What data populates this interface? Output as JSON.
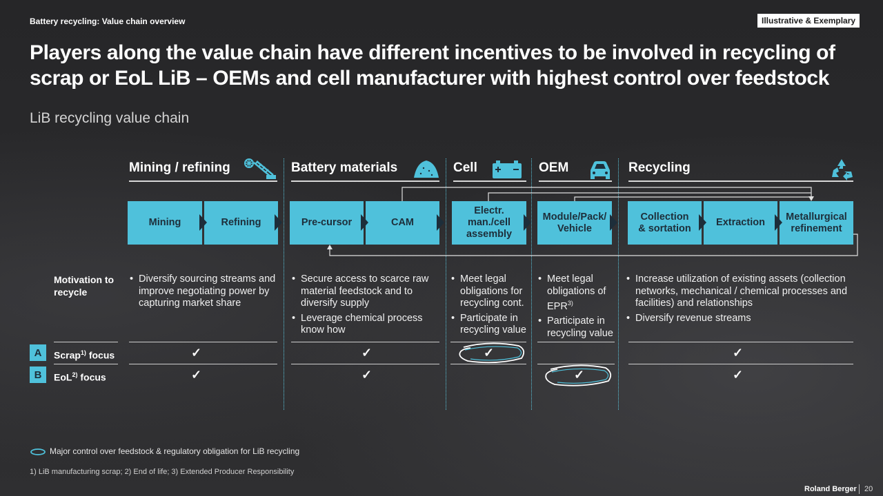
{
  "header": {
    "topic": "Battery recycling: Value chain overview",
    "badge": "Illustrative & Exemplary",
    "title": "Players along the value chain have different incentives to be involved in recycling of scrap or EoL LiB – OEMs and cell manufacturer with highest control over feedstock",
    "subtitle": "LiB recycling value chain"
  },
  "sections": [
    {
      "label": "Mining / refining",
      "icon": "excavator-icon"
    },
    {
      "label": "Battery materials",
      "icon": "material-pile-icon"
    },
    {
      "label": "Cell",
      "icon": "battery-icon"
    },
    {
      "label": "OEM",
      "icon": "car-icon"
    },
    {
      "label": "Recycling",
      "icon": "recycle-icon"
    }
  ],
  "steps": {
    "mining": "Mining",
    "refining": "Refining",
    "precursor": "Pre-cursor",
    "cam": "CAM",
    "cell_line1": "Electr.",
    "cell_line2": "man./cell",
    "cell_line3": "assembly",
    "oem_line1": "Module/Pack/",
    "oem_line2": "Vehicle",
    "collection_line1": "Collection",
    "collection_line2": "& sortation",
    "extraction": "Extraction",
    "metallurgical_line1": "Metallurgical",
    "metallurgical_line2": "refinement"
  },
  "rows": {
    "motivation_line1": "Motivation to",
    "motivation_line2": "recycle",
    "scrap_letter": "A",
    "scrap_label": "Scrap",
    "scrap_sup": "1)",
    "scrap_suffix": " focus",
    "eol_letter": "B",
    "eol_label": "EoL",
    "eol_sup": "2)",
    "eol_suffix": " focus"
  },
  "motivation": {
    "mining": [
      "Diversify sourcing streams and improve negotiating power by capturing market share"
    ],
    "materials": [
      "Secure access to scarce raw material feedstock and to diversify supply",
      "Leverage chemical process know how"
    ],
    "cell": [
      "Meet legal obligations for recycling cont.",
      "Participate in recycling value"
    ],
    "oem_b1": "Meet legal obligations of EPR",
    "oem_b1_sup": "3)",
    "oem_b2": "Participate in recycling value",
    "recycling": [
      "Increase utilization of existing assets (collection networks, mechanical / chemical processes and facilities) and relationships",
      "Diversify revenue streams"
    ]
  },
  "focus": {
    "scrap": {
      "mining": "✓",
      "materials": "✓",
      "cell": "✓",
      "oem": "",
      "recycling": "✓"
    },
    "eol": {
      "mining": "✓",
      "materials": "✓",
      "cell": "",
      "oem": "✓",
      "recycling": "✓"
    }
  },
  "legend": "Major control over feedstock & regulatory obligation for LiB recycling",
  "footnote": "1) LiB manufacturing scrap; 2) End of life; 3) Extended Producer Responsibility",
  "brand": "Roland Berger",
  "page": "20",
  "colors": {
    "accent": "#4fc1db",
    "box_text": "#1d2e3a",
    "background": "#2b2b2d"
  }
}
